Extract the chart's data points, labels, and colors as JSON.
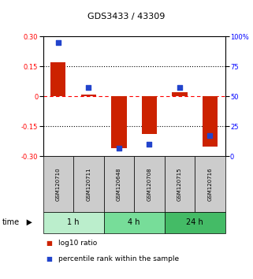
{
  "title": "GDS3433 / 43309",
  "samples": [
    "GSM120710",
    "GSM120711",
    "GSM120648",
    "GSM120708",
    "GSM120715",
    "GSM120716"
  ],
  "log10_ratio": [
    0.17,
    0.01,
    -0.26,
    -0.19,
    0.02,
    -0.25
  ],
  "percentile_rank": [
    95,
    57,
    7,
    10,
    57,
    17
  ],
  "groups": [
    {
      "label": "1 h",
      "samples": [
        0,
        1
      ],
      "color": "#bbeecc"
    },
    {
      "label": "4 h",
      "samples": [
        2,
        3
      ],
      "color": "#77dd99"
    },
    {
      "label": "24 h",
      "samples": [
        4,
        5
      ],
      "color": "#44bb66"
    }
  ],
  "bar_color": "#cc2200",
  "dot_color": "#2244cc",
  "ylim_left": [
    -0.3,
    0.3
  ],
  "ylim_right": [
    0,
    100
  ],
  "yticks_left": [
    -0.3,
    -0.15,
    0.0,
    0.15,
    0.3
  ],
  "yticks_right": [
    0,
    25,
    50,
    75,
    100
  ],
  "hlines": [
    -0.15,
    0.0,
    0.15
  ],
  "hline_styles": [
    "dotted",
    "dashed",
    "dotted"
  ],
  "hline_colors": [
    "black",
    "red",
    "black"
  ],
  "sample_box_color": "#cccccc",
  "background_color": "#ffffff",
  "bar_width": 0.5,
  "dot_size": 18
}
